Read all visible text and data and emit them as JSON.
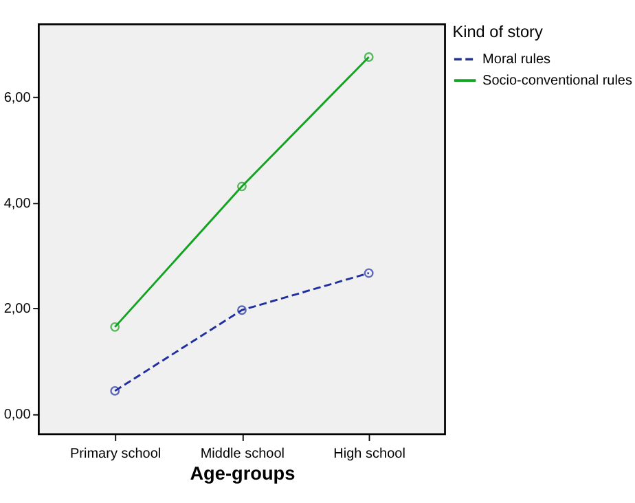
{
  "chart_data": {
    "type": "line",
    "xlabel": "Age-groups",
    "legend_title": "Kind of story",
    "categories": [
      "Primary school",
      "Middle school",
      "High school"
    ],
    "series": [
      {
        "name": "Moral rules",
        "color": "#1f2fa0",
        "line_style": "dashed",
        "values": [
          0.44,
          1.97,
          2.67
        ]
      },
      {
        "name": "Socio-conventional rules",
        "color": "#12a320",
        "line_style": "solid",
        "values": [
          1.65,
          4.31,
          6.76
        ]
      }
    ],
    "ylim": [
      -0.38,
      7.38
    ],
    "yticks": [
      {
        "value": 0,
        "label": "0,00"
      },
      {
        "value": 2,
        "label": "2,00"
      },
      {
        "value": 4,
        "label": "4,00"
      },
      {
        "value": 6,
        "label": "6,00"
      }
    ],
    "marker": "circle",
    "grid": false,
    "legend": "top right"
  }
}
